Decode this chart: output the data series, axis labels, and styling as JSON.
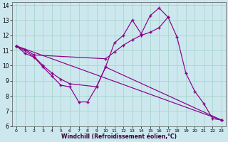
{
  "xlabel": "Windchill (Refroidissement éolien,°C)",
  "background_color": "#cce8ee",
  "grid_color": "#a8d4cc",
  "line_color": "#880088",
  "xlim": [
    -0.5,
    23.5
  ],
  "ylim": [
    6,
    14.2
  ],
  "xticks": [
    0,
    1,
    2,
    3,
    4,
    5,
    6,
    7,
    8,
    9,
    10,
    11,
    12,
    13,
    14,
    15,
    16,
    17,
    18,
    19,
    20,
    21,
    22,
    23
  ],
  "yticks": [
    6,
    7,
    8,
    9,
    10,
    11,
    12,
    13,
    14
  ],
  "lines": [
    {
      "x": [
        0,
        1,
        2,
        3,
        4,
        5,
        6,
        7,
        8,
        9,
        10,
        11,
        12,
        13,
        14,
        15,
        16,
        17
      ],
      "y": [
        11.3,
        10.8,
        10.55,
        9.9,
        9.3,
        8.7,
        8.6,
        7.6,
        7.6,
        8.6,
        9.9,
        11.5,
        12.0,
        13.0,
        12.1,
        13.3,
        13.8,
        13.2
      ]
    },
    {
      "x": [
        0,
        1,
        2,
        10,
        11,
        12,
        13,
        14,
        15,
        16,
        17,
        18,
        19,
        20,
        21,
        22,
        23
      ],
      "y": [
        11.3,
        11.05,
        10.7,
        10.45,
        10.9,
        11.35,
        11.7,
        12.0,
        12.2,
        12.5,
        13.2,
        11.9,
        9.5,
        8.3,
        7.5,
        6.5,
        6.4
      ]
    },
    {
      "x": [
        0,
        23
      ],
      "y": [
        11.3,
        6.4
      ]
    },
    {
      "x": [
        0,
        2,
        3,
        4,
        5,
        6,
        9,
        10,
        23
      ],
      "y": [
        11.3,
        10.6,
        10.0,
        9.5,
        9.1,
        8.8,
        8.6,
        9.9,
        6.4
      ]
    }
  ]
}
